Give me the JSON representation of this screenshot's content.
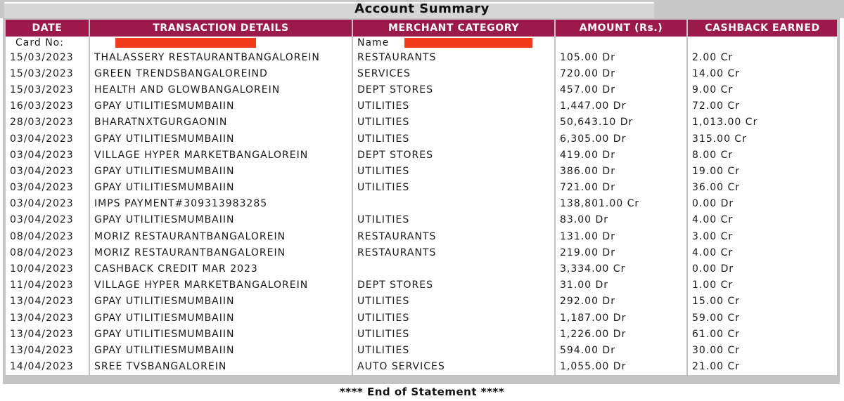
{
  "title": "Account Summary",
  "headers": [
    "DATE",
    "TRANSACTION DETAILS",
    "MERCHANT CATEGORY",
    "AMOUNT (Rs.)",
    "CASHBACK EARNED"
  ],
  "card_row": {
    "card_label": "Card No:",
    "name_label": "Name"
  },
  "rows": [
    [
      "15/03/2023",
      "THALASSERY RESTAURANTBANGALOREIN",
      "RESTAURANTS",
      "105.00 Dr",
      "2.00 Cr"
    ],
    [
      "15/03/2023",
      "GREEN TRENDSBANGALOREIND",
      "SERVICES",
      "720.00 Dr",
      "14.00 Cr"
    ],
    [
      "15/03/2023",
      "HEALTH AND GLOWBANGALOREIN",
      "DEPT STORES",
      "457.00 Dr",
      "9.00 Cr"
    ],
    [
      "16/03/2023",
      "GPAY UTILITIESMUMBAIIN",
      "UTILITIES",
      "1,447.00 Dr",
      "72.00 Cr"
    ],
    [
      "28/03/2023",
      "BHARATNXTGURGAONIN",
      "UTILITIES",
      "50,643.10 Dr",
      "1,013.00 Cr"
    ],
    [
      "03/04/2023",
      "GPAY UTILITIESMUMBAIIN",
      "UTILITIES",
      "6,305.00 Dr",
      "315.00 Cr"
    ],
    [
      "03/04/2023",
      "VILLAGE HYPER MARKETBANGALOREIN",
      "DEPT STORES",
      "419.00 Dr",
      "8.00 Cr"
    ],
    [
      "03/04/2023",
      "GPAY UTILITIESMUMBAIIN",
      "UTILITIES",
      "386.00 Dr",
      "19.00 Cr"
    ],
    [
      "03/04/2023",
      "GPAY UTILITIESMUMBAIIN",
      "UTILITIES",
      "721.00 Dr",
      "36.00 Cr"
    ],
    [
      "03/04/2023",
      "IMPS PAYMENT#309313983285",
      "",
      "138,801.00 Cr",
      "0.00 Dr"
    ],
    [
      "03/04/2023",
      "GPAY UTILITIESMUMBAIIN",
      "UTILITIES",
      "83.00 Dr",
      "4.00 Cr"
    ],
    [
      "08/04/2023",
      "MORIZ RESTAURANTBANGALOREIN",
      "RESTAURANTS",
      "131.00 Dr",
      "3.00 Cr"
    ],
    [
      "08/04/2023",
      "MORIZ RESTAURANTBANGALOREIN",
      "RESTAURANTS",
      "219.00 Dr",
      "4.00 Cr"
    ],
    [
      "10/04/2023",
      "CASHBACK CREDIT MAR 2023",
      "",
      "3,334.00 Cr",
      "0.00 Dr"
    ],
    [
      "11/04/2023",
      "VILLAGE HYPER MARKETBANGALOREIN",
      "DEPT STORES",
      "31.00 Dr",
      "1.00 Cr"
    ],
    [
      "13/04/2023",
      "GPAY UTILITIESMUMBAIIN",
      "UTILITIES",
      "292.00 Dr",
      "15.00 Cr"
    ],
    [
      "13/04/2023",
      "GPAY UTILITIESMUMBAIIN",
      "UTILITIES",
      "1,187.00 Dr",
      "59.00 Cr"
    ],
    [
      "13/04/2023",
      "GPAY UTILITIESMUMBAIIN",
      "UTILITIES",
      "1,226.00 Dr",
      "61.00 Cr"
    ],
    [
      "13/04/2023",
      "GPAY UTILITIESMUMBAIIN",
      "UTILITIES",
      "594.00 Dr",
      "30.00 Cr"
    ],
    [
      "14/04/2023",
      "SREE TVSBANGALOREIN",
      "AUTO SERVICES",
      "1,055.00 Dr",
      "21.00 Cr"
    ]
  ],
  "footer": "**** End of Statement ****",
  "colors": {
    "header_bg": "#9b1a4b",
    "redaction": "#f23b1a",
    "frame": "#c4c4c4"
  }
}
